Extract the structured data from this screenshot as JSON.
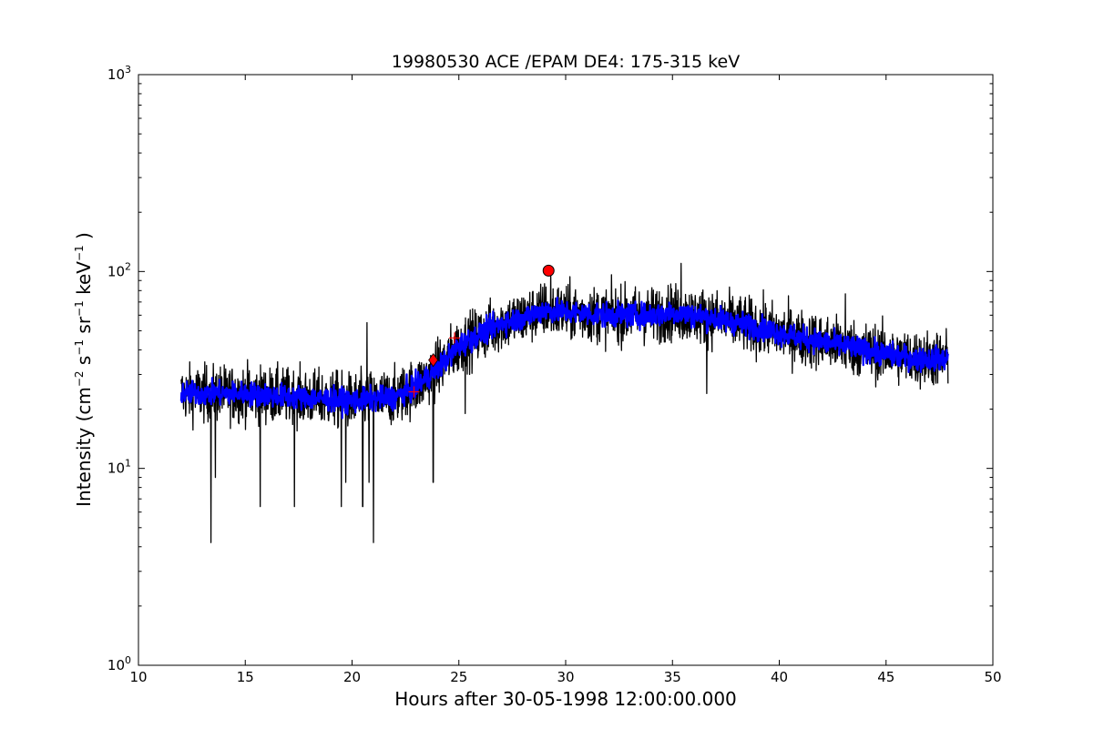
{
  "chart_data": {
    "type": "line",
    "title": "19980530 ACE /EPAM DE4: 175-315 keV",
    "xlabel": "Hours after 30-05-1998 12:00:00.000",
    "ylabel": {
      "prefix": "Intensity (cm",
      "exp1": "−2",
      "s": " s",
      "exp2": "−1",
      "sr": " sr",
      "exp3": "−1",
      "kev": " keV",
      "exp4": "−1",
      "suffix": " )"
    },
    "xlim": [
      10,
      50
    ],
    "ylim": [
      1,
      1000
    ],
    "yscale": "log",
    "grid": false,
    "x_ticks": [
      10,
      15,
      20,
      25,
      30,
      35,
      40,
      45,
      50
    ],
    "y_ticks": [
      {
        "value": 1,
        "base": "10",
        "exp": "0"
      },
      {
        "value": 10,
        "base": "10",
        "exp": "1"
      },
      {
        "value": 100,
        "base": "10",
        "exp": "2"
      },
      {
        "value": 1000,
        "base": "10",
        "exp": "3"
      }
    ],
    "series": [
      {
        "style": "raw",
        "color": "#000000",
        "x_start": 12.0,
        "x_end": 47.9,
        "trend": [
          [
            12,
            24
          ],
          [
            15,
            24
          ],
          [
            20,
            22
          ],
          [
            22,
            23
          ],
          [
            23,
            26
          ],
          [
            24,
            32
          ],
          [
            25,
            42
          ],
          [
            26,
            48
          ],
          [
            27,
            55
          ],
          [
            28,
            58
          ],
          [
            29,
            64
          ],
          [
            30,
            62
          ],
          [
            32,
            60
          ],
          [
            34,
            60
          ],
          [
            35,
            62
          ],
          [
            37,
            58
          ],
          [
            39,
            52
          ],
          [
            41,
            46
          ],
          [
            43,
            42
          ],
          [
            45,
            38
          ],
          [
            46.5,
            36
          ],
          [
            47.9,
            36
          ]
        ],
        "scatter_log10": 0.14,
        "dips": [
          [
            13.4,
            4.2
          ],
          [
            21.0,
            4.2
          ],
          [
            15.7,
            6.4
          ],
          [
            17.3,
            6.4
          ],
          [
            19.5,
            6.4
          ],
          [
            20.5,
            6.4
          ],
          [
            19.7,
            8.5
          ],
          [
            20.8,
            8.5
          ],
          [
            13.6,
            9.0
          ],
          [
            23.8,
            8.5
          ],
          [
            25.3,
            19
          ],
          [
            36.6,
            24
          ]
        ],
        "spikes": [
          [
            20.7,
            55
          ],
          [
            35.4,
            110
          ],
          [
            43.1,
            77
          ],
          [
            29.3,
            100
          ]
        ]
      },
      {
        "style": "smoothed",
        "color": "#0000ff",
        "x_start": 12.0,
        "x_end": 47.9,
        "trend": [
          [
            12,
            24
          ],
          [
            15,
            24
          ],
          [
            20,
            22
          ],
          [
            22,
            23
          ],
          [
            23,
            26
          ],
          [
            24,
            32
          ],
          [
            25,
            42
          ],
          [
            26,
            48
          ],
          [
            27,
            55
          ],
          [
            28,
            58
          ],
          [
            29,
            64
          ],
          [
            30,
            62
          ],
          [
            32,
            60
          ],
          [
            34,
            60
          ],
          [
            35,
            62
          ],
          [
            37,
            58
          ],
          [
            39,
            52
          ],
          [
            41,
            46
          ],
          [
            43,
            42
          ],
          [
            45,
            38
          ],
          [
            46.5,
            36
          ],
          [
            47.9,
            36
          ]
        ],
        "scatter_log10": 0.06
      }
    ],
    "markers": [
      {
        "shape": "plus",
        "color": "#ff0000",
        "x": 22.9,
        "y": 24.5
      },
      {
        "shape": "diamond",
        "color": "#ff0000",
        "x": 23.8,
        "y": 35.5
      },
      {
        "shape": "plus",
        "color": "#ff0000",
        "x": 24.8,
        "y": 46
      },
      {
        "shape": "circle",
        "color": "#ff0000",
        "x": 29.2,
        "y": 101
      }
    ]
  }
}
